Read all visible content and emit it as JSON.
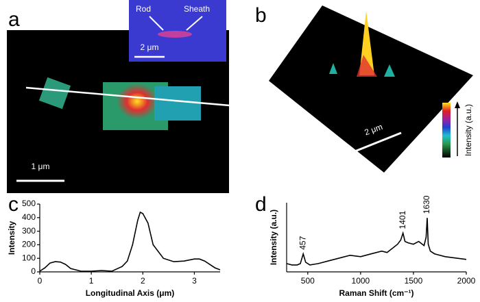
{
  "panels": {
    "a": {
      "label": "a",
      "inset_labels": [
        "Rod",
        "Sheath"
      ],
      "inset_scale": "2 μm",
      "scale": "1 μm"
    },
    "b": {
      "label": "b",
      "scale": "2 μm",
      "colorbar_label": "Intensity (a.u.)"
    }
  },
  "chart_data": [
    {
      "type": "line",
      "panel_label": "c",
      "xlabel": "Longitudinal Axis (μm)",
      "ylabel": "Intensity",
      "color": "#000000",
      "x": [
        0,
        0.1,
        0.2,
        0.3,
        0.4,
        0.5,
        0.6,
        0.8,
        1.0,
        1.2,
        1.4,
        1.6,
        1.7,
        1.8,
        1.9,
        1.95,
        2.0,
        2.1,
        2.2,
        2.4,
        2.6,
        2.8,
        3.0,
        3.1,
        3.2,
        3.4,
        3.5
      ],
      "values": [
        5,
        30,
        65,
        75,
        72,
        55,
        25,
        5,
        5,
        10,
        5,
        40,
        80,
        200,
        380,
        440,
        430,
        360,
        200,
        100,
        75,
        80,
        95,
        95,
        80,
        30,
        15
      ],
      "xlim": [
        0,
        3.5
      ],
      "ylim": [
        0,
        500
      ],
      "xticks": [
        0,
        1,
        2,
        3
      ],
      "yticks": [
        0,
        100,
        200,
        300,
        400,
        500
      ]
    },
    {
      "type": "line",
      "panel_label": "d",
      "xlabel": "Raman Shift (cm⁻¹)",
      "ylabel": "Intensity (a.u.)",
      "color": "#000000",
      "x": [
        300,
        350,
        400,
        430,
        457,
        480,
        520,
        600,
        700,
        800,
        900,
        1000,
        1100,
        1200,
        1250,
        1300,
        1350,
        1380,
        1401,
        1420,
        1450,
        1500,
        1550,
        1600,
        1620,
        1630,
        1640,
        1660,
        1700,
        1800,
        1900,
        2000
      ],
      "values": [
        12,
        10,
        10,
        12,
        26,
        14,
        10,
        12,
        16,
        20,
        24,
        22,
        26,
        30,
        28,
        34,
        40,
        46,
        56,
        44,
        42,
        40,
        44,
        38,
        50,
        78,
        40,
        30,
        26,
        22,
        20,
        18
      ],
      "peaks": [
        457,
        1401,
        1630
      ],
      "peak_values": [
        26,
        56,
        78
      ],
      "xlim": [
        300,
        2000
      ],
      "ylim": [
        0,
        100
      ],
      "xticks": [
        500,
        1000,
        1500,
        2000
      ]
    }
  ]
}
